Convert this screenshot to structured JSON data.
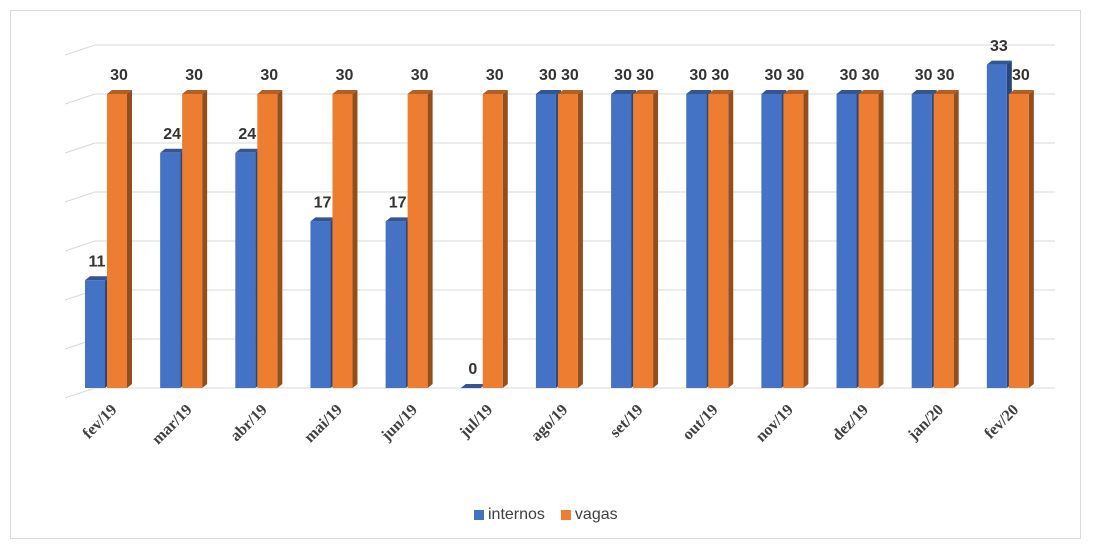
{
  "chart_data": {
    "type": "bar3d",
    "categories": [
      "fev/19",
      "mar/19",
      "abr/19",
      "mai/19",
      "jun/19",
      "jul/19",
      "ago/19",
      "set/19",
      "out/19",
      "nov/19",
      "dez/19",
      "jan/20",
      "fev/20"
    ],
    "series": [
      {
        "name": "internos",
        "color": "#4472c4",
        "values": [
          11,
          24,
          24,
          17,
          17,
          0,
          30,
          30,
          30,
          30,
          30,
          30,
          33
        ]
      },
      {
        "name": "vagas",
        "color": "#ed7d31",
        "values": [
          30,
          30,
          30,
          30,
          30,
          30,
          30,
          30,
          30,
          30,
          30,
          30,
          30
        ]
      }
    ],
    "ylim": [
      0,
      35
    ],
    "yticks": [
      0,
      5,
      10,
      15,
      20,
      25,
      30,
      35
    ],
    "grid": true,
    "legend": "bottom"
  }
}
